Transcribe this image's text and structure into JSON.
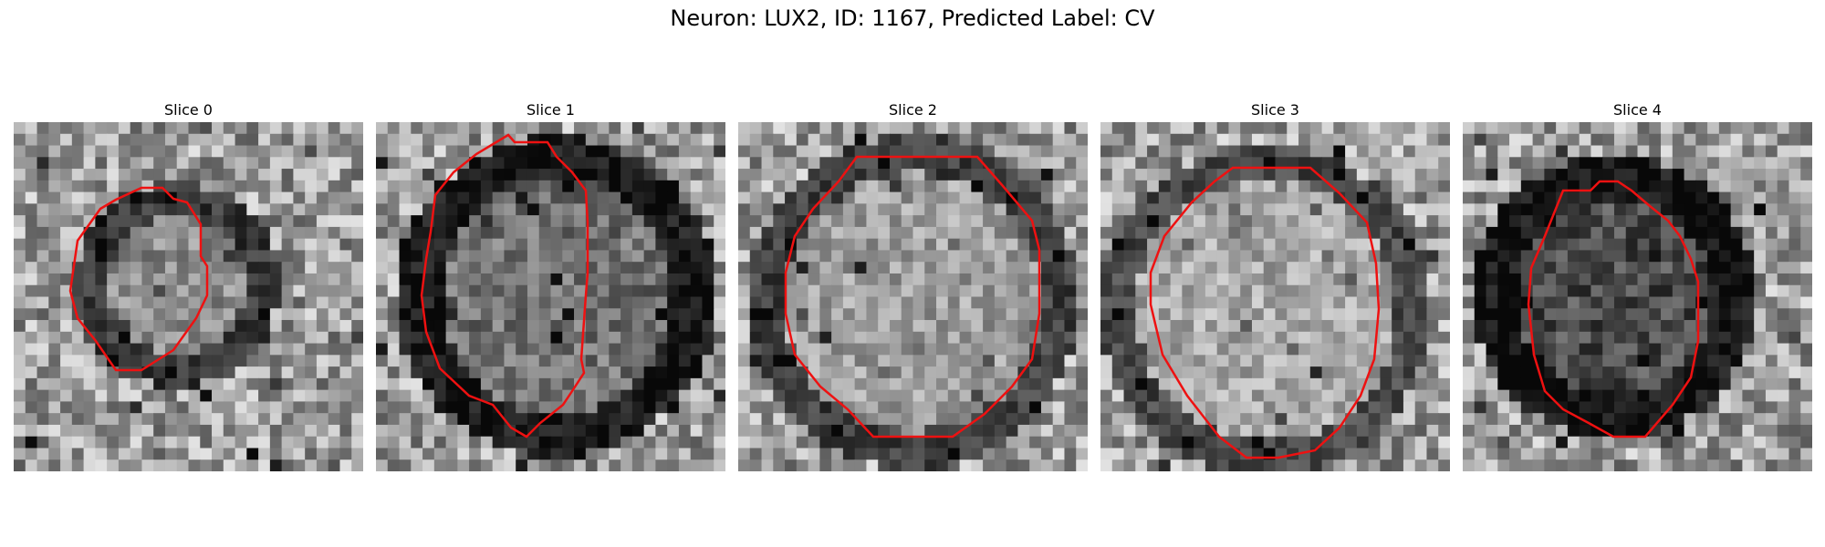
{
  "figure": {
    "title": "Neuron: LUX2, ID: 1167, Predicted Label: CV",
    "contour_color": "#ee1111"
  },
  "panels": [
    {
      "title": "Slice 0"
    },
    {
      "title": "Slice 1"
    },
    {
      "title": "Slice 2"
    },
    {
      "title": "Slice 3"
    },
    {
      "title": "Slice 4"
    }
  ]
}
